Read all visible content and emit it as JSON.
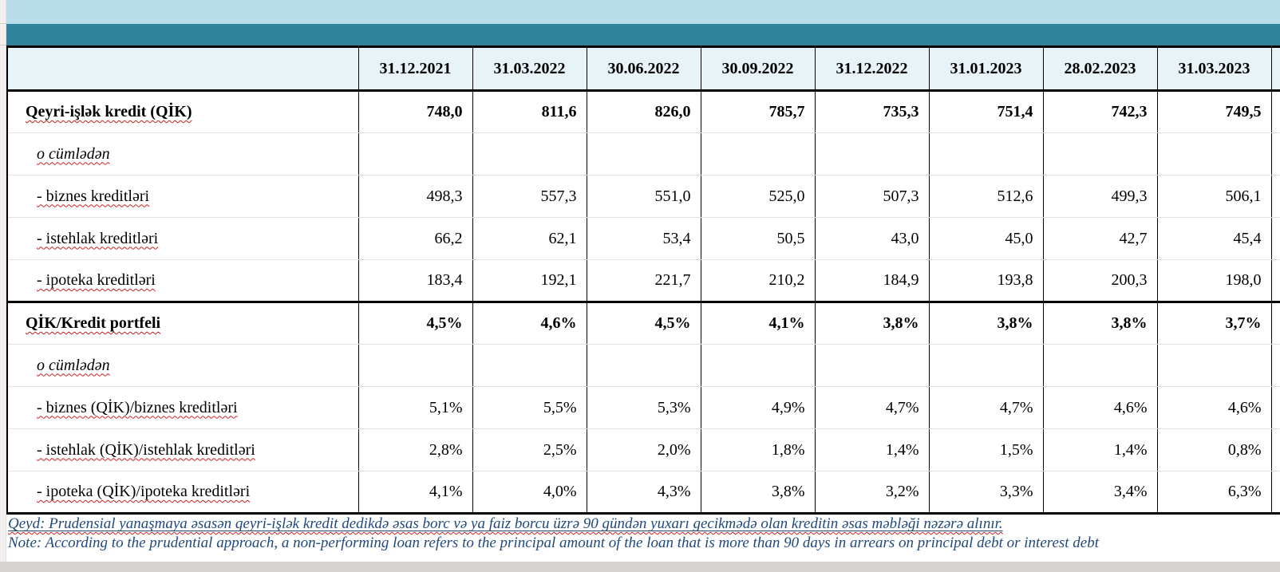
{
  "table": {
    "date_columns": [
      "31.12.2021",
      "31.03.2022",
      "30.06.2022",
      "30.09.2022",
      "31.12.2022",
      "31.01.2023",
      "28.02.2023",
      "31.03.2023"
    ],
    "rows": [
      {
        "label": "Qeyri-işlək kredit (QİK)",
        "bold": true,
        "italic": false,
        "indent": 1,
        "heavy_top": false,
        "squiggle": true,
        "values": [
          "748,0",
          "811,6",
          "826,0",
          "785,7",
          "735,3",
          "751,4",
          "742,3",
          "749,5"
        ]
      },
      {
        "label": "o cümlədən",
        "bold": false,
        "italic": true,
        "indent": 2,
        "heavy_top": false,
        "squiggle": true,
        "values": [
          "",
          "",
          "",
          "",
          "",
          "",
          "",
          ""
        ]
      },
      {
        "label": "- biznes kreditləri",
        "bold": false,
        "italic": false,
        "indent": 2,
        "heavy_top": false,
        "squiggle": true,
        "values": [
          "498,3",
          "557,3",
          "551,0",
          "525,0",
          "507,3",
          "512,6",
          "499,3",
          "506,1"
        ]
      },
      {
        "label": "- istehlak kreditləri",
        "bold": false,
        "italic": false,
        "indent": 2,
        "heavy_top": false,
        "squiggle": true,
        "values": [
          "66,2",
          "62,1",
          "53,4",
          "50,5",
          "43,0",
          "45,0",
          "42,7",
          "45,4"
        ]
      },
      {
        "label": "- ipoteka kreditləri",
        "bold": false,
        "italic": false,
        "indent": 2,
        "heavy_top": false,
        "squiggle": true,
        "values": [
          "183,4",
          "192,1",
          "221,7",
          "210,2",
          "184,9",
          "193,8",
          "200,3",
          "198,0"
        ]
      },
      {
        "label": "QİK/Kredit portfeli",
        "bold": true,
        "italic": false,
        "indent": 1,
        "heavy_top": true,
        "squiggle": true,
        "values": [
          "4,5%",
          "4,6%",
          "4,5%",
          "4,1%",
          "3,8%",
          "3,8%",
          "3,8%",
          "3,7%"
        ]
      },
      {
        "label": "o cümlədən",
        "bold": false,
        "italic": true,
        "indent": 2,
        "heavy_top": false,
        "squiggle": true,
        "values": [
          "",
          "",
          "",
          "",
          "",
          "",
          "",
          ""
        ]
      },
      {
        "label": "- biznes (QİK)/biznes kreditləri",
        "bold": false,
        "italic": false,
        "indent": 2,
        "heavy_top": false,
        "squiggle": true,
        "values": [
          "5,1%",
          "5,5%",
          "5,3%",
          "4,9%",
          "4,7%",
          "4,7%",
          "4,6%",
          "4,6%"
        ]
      },
      {
        "label": "- istehlak (QİK)/istehlak kreditləri",
        "bold": false,
        "italic": false,
        "indent": 2,
        "heavy_top": false,
        "squiggle": true,
        "values": [
          "2,8%",
          "2,5%",
          "2,0%",
          "1,8%",
          "1,4%",
          "1,5%",
          "1,4%",
          "0,8%"
        ]
      },
      {
        "label": "- ipoteka (QİK)/ipoteka kreditləri",
        "bold": false,
        "italic": false,
        "indent": 2,
        "heavy_top": false,
        "squiggle": true,
        "values": [
          "4,1%",
          "4,0%",
          "4,3%",
          "3,8%",
          "3,2%",
          "3,3%",
          "3,4%",
          "6,3%"
        ]
      }
    ]
  },
  "notes": {
    "qeyd": "Qeyd: Prudensial yanaşmaya əsasən qeyri-işlək kredit dedikdə əsas borc və ya faiz borcu üzrə 90 gündən yuxarı gecikmədə olan kreditin əsas məbləği nəzərə alınır.",
    "note": "Note: According to the prudential approach, a non-performing loan refers to the principal amount of the loan that is more than 90 days in arrears on principal debt or interest debt"
  },
  "colors": {
    "top_bar": "#b8dce8",
    "title_bar": "#31849b",
    "header_cell_bg": "#e7f3f6",
    "note_text": "#1f497d",
    "spellcheck_squiggle": "#cc2020",
    "grid_heavy": "#000000",
    "grid_light": "#e2e2e2"
  }
}
